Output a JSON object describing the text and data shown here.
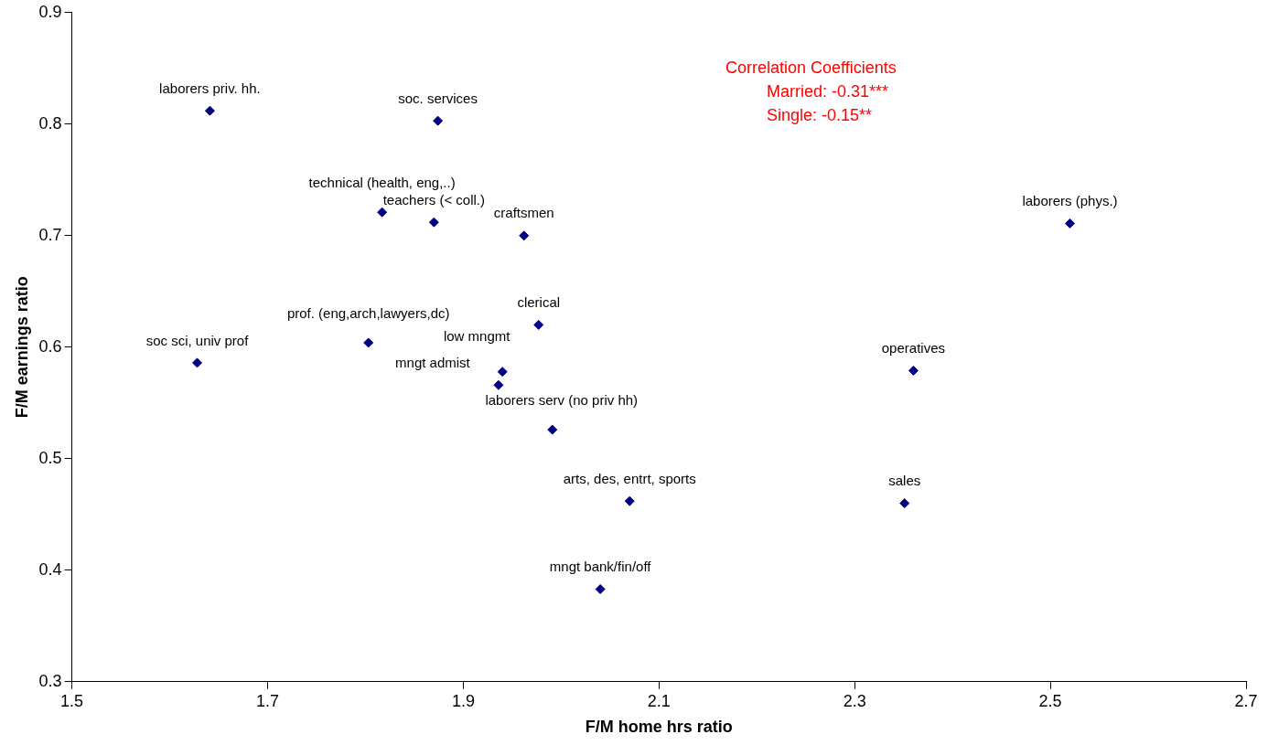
{
  "chart_data": {
    "type": "scatter",
    "xlabel": "F/M home hrs ratio",
    "ylabel": "F/M earnings ratio",
    "xlim": [
      1.5,
      2.7
    ],
    "xticks": [
      1.5,
      1.7,
      1.9,
      2.1,
      2.3,
      2.5,
      2.7
    ],
    "ylim": [
      0.3,
      0.9
    ],
    "yticks": [
      0.3,
      0.4,
      0.5,
      0.6,
      0.7,
      0.8,
      0.9
    ],
    "grid": false,
    "legend": false,
    "marker": "diamond",
    "series": [
      {
        "color": "#000080",
        "x": [
          1.641,
          1.874,
          1.817,
          1.87,
          1.962,
          2.52,
          1.977,
          1.803,
          1.628,
          1.94,
          1.936,
          2.36,
          1.991,
          2.07,
          2.351,
          2.04
        ],
        "values": [
          0.812,
          0.803,
          0.721,
          0.712,
          0.7,
          0.711,
          0.62,
          0.604,
          0.586,
          0.578,
          0.566,
          0.579,
          0.526,
          0.462,
          0.46,
          0.383
        ]
      }
    ],
    "annotations": [
      {
        "text": "laborers priv. hh.",
        "x": 1.641,
        "y": 0.812
      },
      {
        "text": "soc. services",
        "x": 1.874,
        "y": 0.803
      },
      {
        "text": "technical (health, eng,..)",
        "x": 1.817,
        "y": 0.721
      },
      {
        "text": "teachers (< coll.)",
        "x": 1.87,
        "y": 0.712
      },
      {
        "text": "craftsmen",
        "x": 1.962,
        "y": 0.7
      },
      {
        "text": "laborers (phys.)",
        "x": 2.52,
        "y": 0.711
      },
      {
        "text": "clerical",
        "x": 1.977,
        "y": 0.62
      },
      {
        "text": "prof. (eng,arch,lawyers,dc)",
        "x": 1.803,
        "y": 0.604
      },
      {
        "text": "soc sci, univ prof",
        "x": 1.628,
        "y": 0.586
      },
      {
        "text": "low mngmt",
        "x": 1.94,
        "y": 0.578
      },
      {
        "text": "mngt admist",
        "x": 1.936,
        "y": 0.566
      },
      {
        "text": "operatives",
        "x": 2.36,
        "y": 0.579
      },
      {
        "text": "laborers serv (no priv hh)",
        "x": 1.991,
        "y": 0.526
      },
      {
        "text": "arts, des, entrt, sports",
        "x": 2.07,
        "y": 0.462
      },
      {
        "text": "sales",
        "x": 2.351,
        "y": 0.46
      },
      {
        "text": "mngt bank/fin/off",
        "x": 2.04,
        "y": 0.383
      },
      "Correlation Coefficients",
      "Married: -0.31***",
      "Single: -0.15**"
    ]
  }
}
